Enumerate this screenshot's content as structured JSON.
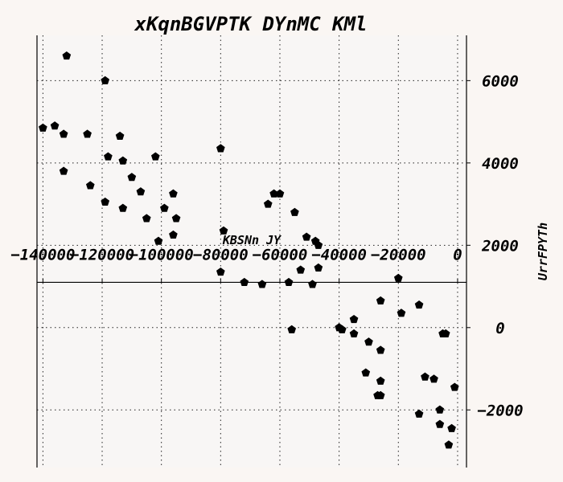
{
  "chart_data": {
    "type": "scatter",
    "title": "xKqnBGVPTK DYnMC KMl",
    "xlabel": "KBSNn JY",
    "ylabel": "UrrFPYTh",
    "xlim": [
      -142000,
      3000
    ],
    "ylim": [
      -3400,
      7100
    ],
    "x_ticks": [
      -140000,
      -120000,
      -100000,
      -80000,
      -60000,
      -40000,
      -20000,
      0
    ],
    "x_tick_labels": [
      "−140000",
      "−120000",
      "−100000",
      "−80000",
      "−60000",
      "−40000",
      "−20000",
      "0"
    ],
    "y_ticks": [
      -2000,
      0,
      2000,
      4000,
      6000
    ],
    "y_tick_labels": [
      "−2000",
      "0",
      "2000",
      "4000",
      "6000"
    ],
    "x_axis_crossing_y": 1100,
    "y_axis_position": "right",
    "grid": true,
    "marker": "pentagon",
    "series": [
      {
        "points": [
          [
            -132000,
            6600
          ],
          [
            -119000,
            6000
          ],
          [
            -136000,
            4900
          ],
          [
            -140000,
            4850
          ],
          [
            -133000,
            4700
          ],
          [
            -125000,
            4700
          ],
          [
            -114000,
            4650
          ],
          [
            -80000,
            4350
          ],
          [
            -118000,
            4150
          ],
          [
            -102000,
            4150
          ],
          [
            -113000,
            4050
          ],
          [
            -133000,
            3800
          ],
          [
            -110000,
            3650
          ],
          [
            -124000,
            3450
          ],
          [
            -107000,
            3300
          ],
          [
            -96000,
            3250
          ],
          [
            -119000,
            3050
          ],
          [
            -113000,
            2900
          ],
          [
            -99000,
            2900
          ],
          [
            -105000,
            2650
          ],
          [
            -95000,
            2650
          ],
          [
            -96000,
            2250
          ],
          [
            -101000,
            2100
          ],
          [
            -79000,
            2350
          ],
          [
            -62000,
            3250
          ],
          [
            -60000,
            3250
          ],
          [
            -64000,
            3000
          ],
          [
            -55000,
            2800
          ],
          [
            -51000,
            2200
          ],
          [
            -48000,
            2100
          ],
          [
            -47000,
            2000
          ],
          [
            -53000,
            1400
          ],
          [
            -47000,
            1450
          ],
          [
            -80000,
            1350
          ],
          [
            -72000,
            1100
          ],
          [
            -66000,
            1050
          ],
          [
            -57000,
            1100
          ],
          [
            -49000,
            1050
          ],
          [
            -20000,
            1200
          ],
          [
            -26000,
            650
          ],
          [
            -19000,
            350
          ],
          [
            -13000,
            550
          ],
          [
            -35000,
            200
          ],
          [
            -40000,
            0
          ],
          [
            -39000,
            -50
          ],
          [
            -35000,
            -150
          ],
          [
            -56000,
            -50
          ],
          [
            -30000,
            -350
          ],
          [
            -26000,
            -550
          ],
          [
            -31000,
            -1100
          ],
          [
            -26000,
            -1300
          ],
          [
            -27000,
            -1650
          ],
          [
            -26000,
            -1650
          ],
          [
            -11000,
            -1200
          ],
          [
            -8000,
            -1250
          ],
          [
            -5000,
            -150
          ],
          [
            -4000,
            -150
          ],
          [
            -1000,
            -1450
          ],
          [
            -6000,
            -2000
          ],
          [
            -13000,
            -2100
          ],
          [
            -6000,
            -2350
          ],
          [
            -2000,
            -2450
          ],
          [
            -3000,
            -2850
          ]
        ]
      }
    ]
  }
}
